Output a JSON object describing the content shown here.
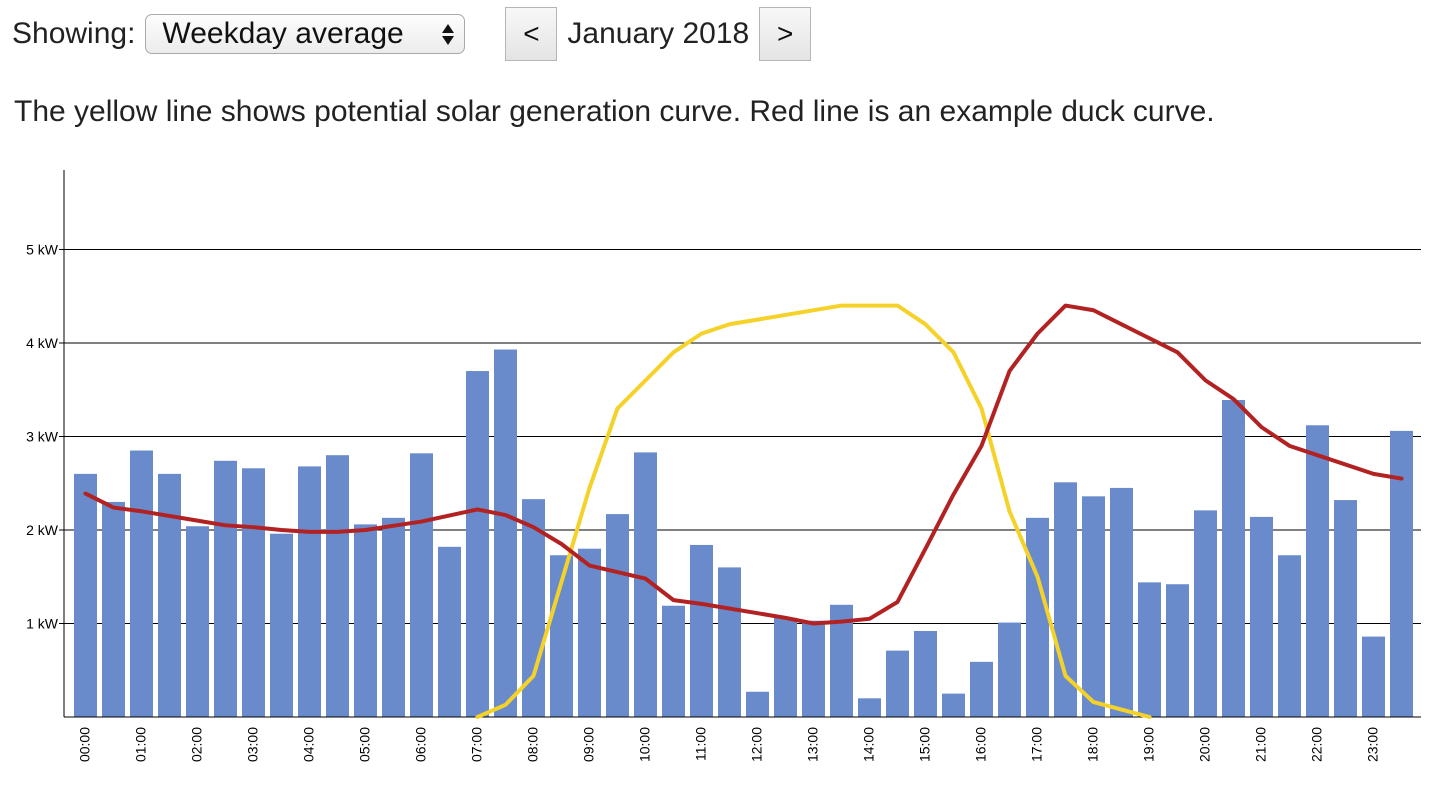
{
  "controls": {
    "showing_label": "Showing:",
    "view_select_value": "Weekday average",
    "prev_label": "<",
    "month_label": "January 2018",
    "next_label": ">"
  },
  "description": "The yellow line shows potential solar generation curve. Red line is an example duck curve.",
  "colors": {
    "bars": "#6a8bcb",
    "solar": "#f5d22a",
    "duck": "#b22222",
    "grid": "#000000"
  },
  "chart_data": {
    "type": "bar",
    "x_tick_labels": [
      "00:00",
      "01:00",
      "02:00",
      "03:00",
      "04:00",
      "05:00",
      "06:00",
      "07:00",
      "08:00",
      "09:00",
      "10:00",
      "11:00",
      "12:00",
      "13:00",
      "14:00",
      "15:00",
      "16:00",
      "17:00",
      "18:00",
      "19:00",
      "20:00",
      "21:00",
      "22:00",
      "23:00"
    ],
    "y_ticks": [
      1,
      2,
      3,
      4,
      5
    ],
    "y_tick_labels": [
      "1 kW",
      "2 kW",
      "3 kW",
      "4 kW",
      "5 kW"
    ],
    "ylim": [
      0,
      5.85
    ],
    "grid": true,
    "series": [
      {
        "kind": "bar",
        "values": [
          2.6,
          2.3,
          2.85,
          2.6,
          2.04,
          2.74,
          2.66,
          1.96,
          2.68,
          2.8,
          2.06,
          2.13,
          2.82,
          1.82,
          3.7,
          3.93,
          2.33,
          1.73,
          1.8,
          2.17,
          2.83,
          1.19,
          1.84,
          1.6,
          0.27,
          1.06,
          1.03,
          1.2,
          0.2,
          0.71,
          0.92,
          0.25,
          0.59,
          1.01,
          2.13,
          2.51,
          2.36,
          2.45,
          1.44,
          1.42,
          2.21,
          3.39,
          2.14,
          1.73,
          3.12,
          2.32,
          0.86,
          3.06
        ]
      },
      {
        "kind": "line",
        "values": [
          [
            7.0,
            0.0
          ],
          [
            7.5,
            0.13
          ],
          [
            8.0,
            0.44
          ],
          [
            9.0,
            2.45
          ],
          [
            9.5,
            3.3
          ],
          [
            10.5,
            3.9
          ],
          [
            11.0,
            4.1
          ],
          [
            11.5,
            4.2
          ],
          [
            13.5,
            4.4
          ],
          [
            14.5,
            4.4
          ],
          [
            15.0,
            4.2
          ],
          [
            15.5,
            3.9
          ],
          [
            16.0,
            3.3
          ],
          [
            16.5,
            2.2
          ],
          [
            17.0,
            1.5
          ],
          [
            17.5,
            0.44
          ],
          [
            18.0,
            0.16
          ],
          [
            18.5,
            0.08
          ],
          [
            19.0,
            0.0
          ]
        ]
      },
      {
        "kind": "line",
        "values": [
          [
            0.0,
            2.39
          ],
          [
            0.5,
            2.24
          ],
          [
            1.0,
            2.2
          ],
          [
            2.0,
            2.1
          ],
          [
            2.5,
            2.05
          ],
          [
            3.0,
            2.03
          ],
          [
            3.5,
            2.0
          ],
          [
            4.0,
            1.98
          ],
          [
            4.5,
            1.98
          ],
          [
            5.0,
            2.0
          ],
          [
            6.0,
            2.09
          ],
          [
            7.0,
            2.22
          ],
          [
            7.5,
            2.16
          ],
          [
            8.0,
            2.03
          ],
          [
            8.5,
            1.85
          ],
          [
            9.0,
            1.62
          ],
          [
            10.0,
            1.48
          ],
          [
            10.5,
            1.25
          ],
          [
            11.0,
            1.21
          ],
          [
            12.0,
            1.11
          ],
          [
            12.5,
            1.06
          ],
          [
            13.0,
            1.0
          ],
          [
            13.5,
            1.02
          ],
          [
            14.0,
            1.05
          ],
          [
            14.5,
            1.23
          ],
          [
            15.0,
            1.8
          ],
          [
            15.5,
            2.38
          ],
          [
            16.0,
            2.9
          ],
          [
            16.5,
            3.7
          ],
          [
            17.0,
            4.1
          ],
          [
            17.5,
            4.4
          ],
          [
            18.0,
            4.35
          ],
          [
            18.5,
            4.2
          ],
          [
            19.0,
            4.05
          ],
          [
            19.5,
            3.9
          ],
          [
            20.0,
            3.6
          ],
          [
            20.5,
            3.4
          ],
          [
            21.0,
            3.1
          ],
          [
            21.5,
            2.9
          ],
          [
            22.0,
            2.8
          ],
          [
            23.0,
            2.6
          ],
          [
            23.5,
            2.55
          ]
        ]
      }
    ]
  }
}
